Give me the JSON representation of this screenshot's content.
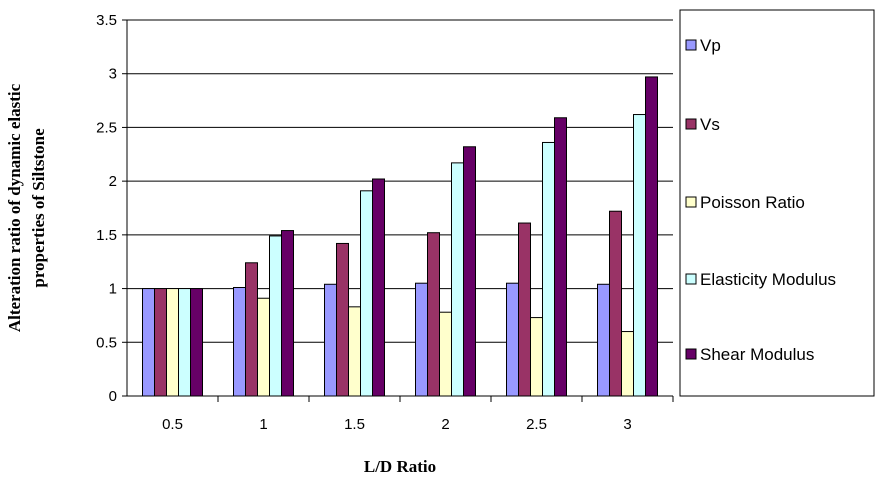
{
  "chart_data": {
    "type": "bar",
    "title": "",
    "xlabel": "L/D Ratio",
    "ylabel": "Alteration ratio of dynamic elastic properties of Siltstone",
    "ylabel_lines": [
      "Alteration ratio of dynamic elastic",
      "properties of Siltstone"
    ],
    "ylim": [
      0,
      3.5
    ],
    "yticks": [
      "0",
      "0.5",
      "1",
      "1.5",
      "2",
      "2.5",
      "3",
      "3.5"
    ],
    "categories": [
      "0.5",
      "1",
      "1.5",
      "2",
      "2.5",
      "3"
    ],
    "grid": "horizontal",
    "legend_position": "right",
    "series": [
      {
        "name": "Vp",
        "color": "#9999ff",
        "values": [
          1.0,
          1.01,
          1.04,
          1.05,
          1.05,
          1.04
        ]
      },
      {
        "name": "Vs",
        "color": "#993366",
        "values": [
          1.0,
          1.24,
          1.42,
          1.52,
          1.61,
          1.72
        ]
      },
      {
        "name": "Poisson Ratio",
        "color": "#ffffcc",
        "values": [
          1.0,
          0.91,
          0.83,
          0.78,
          0.73,
          0.6
        ]
      },
      {
        "name": "Elasticity Modulus",
        "color": "#ccffff",
        "values": [
          1.0,
          1.49,
          1.91,
          2.17,
          2.36,
          2.62
        ]
      },
      {
        "name": "Shear Modulus",
        "color": "#660066",
        "values": [
          1.0,
          1.54,
          2.02,
          2.32,
          2.59,
          2.97
        ]
      }
    ]
  }
}
